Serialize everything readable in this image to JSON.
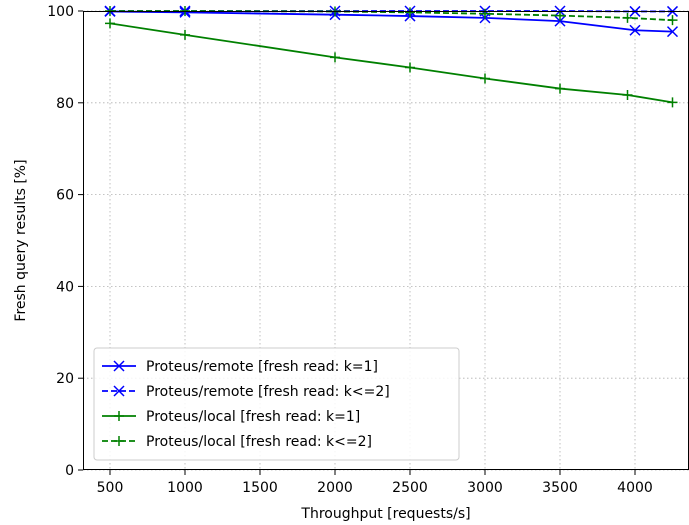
{
  "chart_data": {
    "type": "line",
    "title": "",
    "xlabel": "Throughput [requests/s]",
    "ylabel": "Fresh query results [%]",
    "xlim": [
      320,
      4360
    ],
    "ylim": [
      0,
      100
    ],
    "xticks": [
      500,
      1000,
      1500,
      2000,
      2500,
      3000,
      3500,
      4000
    ],
    "yticks": [
      0,
      20,
      40,
      60,
      80,
      100
    ],
    "grid": true,
    "legend_position": "lower-left",
    "series": [
      {
        "name": "Proteus/remote [fresh read: k=1]",
        "color": "#0000ff",
        "linestyle": "solid",
        "marker": "x",
        "x": [
          500,
          1000,
          2000,
          2500,
          3000,
          3500,
          4000,
          4250
        ],
        "y": [
          99.9,
          99.7,
          99.2,
          98.9,
          98.5,
          97.8,
          95.8,
          95.5
        ]
      },
      {
        "name": "Proteus/remote [fresh read: k<=2]",
        "color": "#0000ff",
        "linestyle": "dashed",
        "marker": "x",
        "x": [
          500,
          1000,
          2000,
          2500,
          3000,
          3500,
          4000,
          4250
        ],
        "y": [
          100,
          100,
          100,
          100,
          100,
          100,
          99.9,
          99.9
        ]
      },
      {
        "name": "Proteus/local [fresh read: k=1]",
        "color": "#008000",
        "linestyle": "solid",
        "marker": "+",
        "x": [
          500,
          1000,
          2000,
          2500,
          3000,
          3500,
          3950,
          4250
        ],
        "y": [
          97.3,
          94.8,
          89.9,
          87.7,
          85.3,
          83.1,
          81.7,
          80.1
        ]
      },
      {
        "name": "Proteus/local [fresh read: k<=2]",
        "color": "#008000",
        "linestyle": "dashed",
        "marker": "+",
        "x": [
          500,
          1000,
          2000,
          2500,
          3000,
          3500,
          3950,
          4250
        ],
        "y": [
          100,
          100,
          99.9,
          99.7,
          99.4,
          99.0,
          98.5,
          98.0
        ]
      }
    ]
  }
}
